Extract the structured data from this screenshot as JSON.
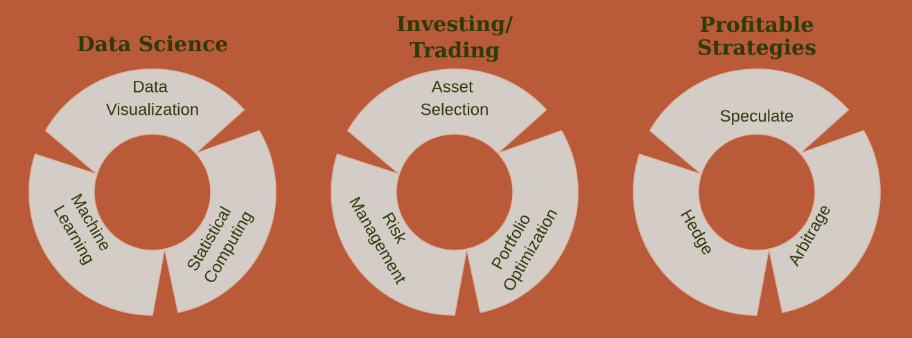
{
  "colors": {
    "background": "#b95a39",
    "segment": "#d3ccc7",
    "text": "#2e3a0a"
  },
  "wheels": [
    {
      "title": [
        "Data Science"
      ],
      "segments": [
        {
          "lines": [
            "Data",
            "Visualization"
          ]
        },
        {
          "lines": [
            "Statistical",
            "Computing"
          ]
        },
        {
          "lines": [
            "Machine",
            "Learning"
          ]
        }
      ]
    },
    {
      "title": [
        "Investing/",
        "Trading"
      ],
      "segments": [
        {
          "lines": [
            "Asset",
            "Selection"
          ]
        },
        {
          "lines": [
            "Portfolio",
            "Optimization"
          ]
        },
        {
          "lines": [
            "Risk",
            "Management"
          ]
        }
      ]
    },
    {
      "title": [
        "Profitable",
        "Strategies"
      ],
      "segments": [
        {
          "lines": [
            "Speculate"
          ]
        },
        {
          "lines": [
            "Arbitrage"
          ]
        },
        {
          "lines": [
            "Hedge"
          ]
        }
      ]
    }
  ]
}
